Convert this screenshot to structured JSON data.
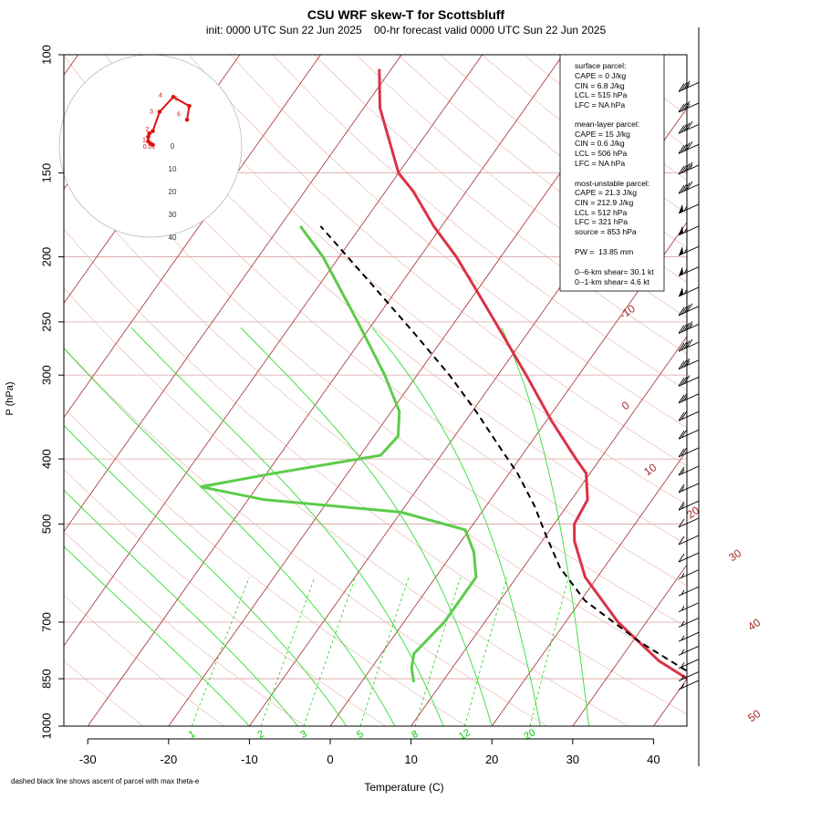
{
  "chart_data": {
    "type": "line",
    "title": "CSU WRF skew-T for Scottsbluff",
    "subtitle": "init: 0000 UTC Sun 22 Jun 2025    00-hr forecast valid 0000 UTC Sun 22 Jun 2025",
    "xlabel": "Temperature (C)",
    "ylabel": "P (hPa)",
    "xlim": [
      -33,
      45
    ],
    "ylim": [
      1000,
      100
    ],
    "y_scale": "log",
    "x_ticks": [
      "-30",
      "-20",
      "-10",
      "0",
      "10",
      "20",
      "30",
      "40"
    ],
    "y_ticks": [
      "100",
      "150",
      "200",
      "250",
      "300",
      "400",
      "500",
      "700",
      "850",
      "1000"
    ],
    "isotherm_labels": [
      "-10",
      "0",
      "10",
      "20",
      "30",
      "40",
      "50"
    ],
    "mixing_ratio_labels": [
      "1",
      "2",
      "3",
      "5",
      "8",
      "12",
      "20"
    ],
    "footnote": "dashed black line shows ascent of parcel with max theta-e",
    "temperature": [
      {
        "p": 860,
        "t": 41.0
      },
      {
        "p": 800,
        "t": 35.0
      },
      {
        "p": 700,
        "t": 26.5
      },
      {
        "p": 600,
        "t": 18.5
      },
      {
        "p": 530,
        "t": 14.0
      },
      {
        "p": 500,
        "t": 12.5
      },
      {
        "p": 460,
        "t": 12.0
      },
      {
        "p": 420,
        "t": 9.5
      },
      {
        "p": 400,
        "t": 7.0
      },
      {
        "p": 350,
        "t": 0.5
      },
      {
        "p": 300,
        "t": -6.5
      },
      {
        "p": 250,
        "t": -15.0
      },
      {
        "p": 220,
        "t": -21.0
      },
      {
        "p": 200,
        "t": -25.5
      },
      {
        "p": 180,
        "t": -31.0
      },
      {
        "p": 160,
        "t": -36.5
      },
      {
        "p": 150,
        "t": -40.0
      },
      {
        "p": 120,
        "t": -48.0
      },
      {
        "p": 105,
        "t": -51.5
      }
    ],
    "dewpoint": [
      {
        "p": 860,
        "t": 6.5
      },
      {
        "p": 820,
        "t": 5.0
      },
      {
        "p": 780,
        "t": 4.0
      },
      {
        "p": 700,
        "t": 5.0
      },
      {
        "p": 600,
        "t": 5.0
      },
      {
        "p": 550,
        "t": 2.5
      },
      {
        "p": 510,
        "t": -0.5
      },
      {
        "p": 480,
        "t": -10.0
      },
      {
        "p": 460,
        "t": -28.0
      },
      {
        "p": 440,
        "t": -37.0
      },
      {
        "p": 420,
        "t": -29.0
      },
      {
        "p": 395,
        "t": -17.5
      },
      {
        "p": 370,
        "t": -17.0
      },
      {
        "p": 340,
        "t": -19.0
      },
      {
        "p": 300,
        "t": -24.0
      },
      {
        "p": 250,
        "t": -32.0
      },
      {
        "p": 200,
        "t": -42.0
      },
      {
        "p": 180,
        "t": -47.5
      }
    ],
    "parcel": [
      {
        "p": 860,
        "t": 42.5
      },
      {
        "p": 750,
        "t": 31.0
      },
      {
        "p": 650,
        "t": 20.5
      },
      {
        "p": 580,
        "t": 14.5
      },
      {
        "p": 520,
        "t": 10.0
      },
      {
        "p": 470,
        "t": 6.0
      },
      {
        "p": 420,
        "t": 1.0
      },
      {
        "p": 380,
        "t": -4.0
      },
      {
        "p": 340,
        "t": -9.5
      },
      {
        "p": 300,
        "t": -16.0
      },
      {
        "p": 260,
        "t": -24.0
      },
      {
        "p": 220,
        "t": -33.5
      },
      {
        "p": 180,
        "t": -45.0
      }
    ],
    "hodograph": {
      "ring_labels": [
        "0",
        "10",
        "20",
        "30",
        "40"
      ],
      "point_labels": [
        "0.01",
        "1",
        "2",
        "3",
        "4",
        "5",
        "6"
      ],
      "points": [
        {
          "u": 1.0,
          "v": 0.5
        },
        {
          "u": 0.0,
          "v": 1.0
        },
        {
          "u": -1.0,
          "v": 2.0
        },
        {
          "u": -1.0,
          "v": 4.0
        },
        {
          "u": -0.5,
          "v": 5.5
        },
        {
          "u": 1.0,
          "v": 6.5
        },
        {
          "u": 4.0,
          "v": 15.0
        },
        {
          "u": 10.0,
          "v": 21.5
        },
        {
          "u": 17.0,
          "v": 17.5
        },
        {
          "u": 16.0,
          "v": 11.5
        }
      ]
    },
    "wind_barbs": [
      {
        "p": 110,
        "speed": 35
      },
      {
        "p": 118,
        "speed": 35
      },
      {
        "p": 127,
        "speed": 40
      },
      {
        "p": 136,
        "speed": 40
      },
      {
        "p": 146,
        "speed": 45
      },
      {
        "p": 156,
        "speed": 40
      },
      {
        "p": 167,
        "speed": 55
      },
      {
        "p": 180,
        "speed": 55
      },
      {
        "p": 193,
        "speed": 55
      },
      {
        "p": 207,
        "speed": 55
      },
      {
        "p": 222,
        "speed": 55
      },
      {
        "p": 237,
        "speed": 40
      },
      {
        "p": 252,
        "speed": 45
      },
      {
        "p": 268,
        "speed": 40
      },
      {
        "p": 285,
        "speed": 35
      },
      {
        "p": 302,
        "speed": 30
      },
      {
        "p": 320,
        "speed": 25
      },
      {
        "p": 340,
        "speed": 20
      },
      {
        "p": 362,
        "speed": 20
      },
      {
        "p": 385,
        "speed": 20
      },
      {
        "p": 410,
        "speed": 15
      },
      {
        "p": 435,
        "speed": 15
      },
      {
        "p": 462,
        "speed": 15
      },
      {
        "p": 490,
        "speed": 10
      },
      {
        "p": 520,
        "speed": 10
      },
      {
        "p": 552,
        "speed": 10
      },
      {
        "p": 585,
        "speed": 5
      },
      {
        "p": 620,
        "speed": 5
      },
      {
        "p": 655,
        "speed": 5
      },
      {
        "p": 690,
        "speed": 5
      },
      {
        "p": 725,
        "speed": 5
      },
      {
        "p": 760,
        "speed": 5
      },
      {
        "p": 795,
        "speed": 5
      },
      {
        "p": 830,
        "speed": 5
      },
      {
        "p": 855,
        "speed": 5
      }
    ]
  },
  "stats": {
    "surface_title": "surface parcel:",
    "surface_cape": "CAPE = 0 J/kg",
    "surface_cin": "CIN = 6.8 J/kg",
    "surface_lcl": "LCL = 515 hPa",
    "surface_lfc": "LFC = NA hPa",
    "mean_title": "mean-layer parcel:",
    "mean_cape": "CAPE = 15 J/kg",
    "mean_cin": "CIN = 0.6 J/kg",
    "mean_lcl": "LCL = 506 hPa",
    "mean_lfc": "LFC = NA hPa",
    "mu_title": "most-unstable parcel:",
    "mu_cape": "CAPE = 21.3 J/kg",
    "mu_cin": "CIN = 212.9 J/kg",
    "mu_lcl": "LCL = 512 hPa",
    "mu_lfc": "LFC = 321 hPa",
    "mu_source": "source = 853 hPa",
    "pw": "PW =  13.85 mm",
    "shear6": "0--6-km shear= 30.1 kt",
    "shear1": "0--1-km shear= 4.6 kt"
  },
  "colors": {
    "isotherm": "#a52a2a",
    "isobar": "#d9a0a0",
    "dry_adiabat": "#e8b0b0",
    "mixing_ratio": "#00cc00",
    "moist_adiabat": "#33dd33",
    "temperature": "#dc3246",
    "dewpoint": "#5ccc4a",
    "parcel": "#000000",
    "hodograph": "#e01010"
  }
}
